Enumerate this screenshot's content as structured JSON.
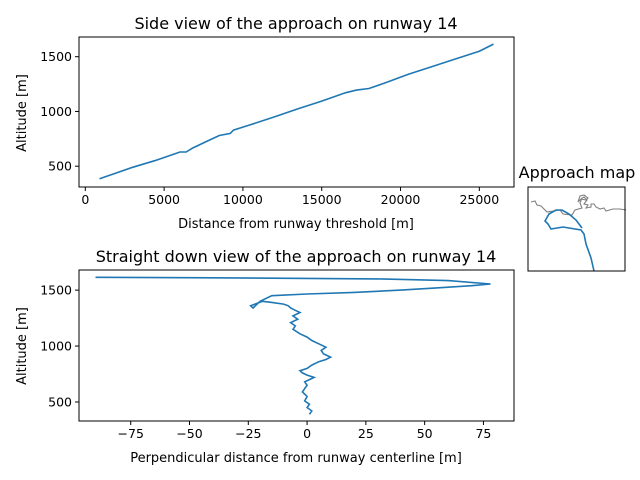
{
  "chart_data": [
    {
      "type": "line",
      "title": "Side view of the approach on runway 14",
      "xlabel": "Distance from runway threshold [m]",
      "ylabel": "Altitude [m]",
      "xlim": [
        -400,
        27200
      ],
      "ylim": [
        310,
        1680
      ],
      "xticks": [
        0,
        5000,
        10000,
        15000,
        20000,
        25000
      ],
      "xtick_labels": [
        "0",
        "5000",
        "10000",
        "15000",
        "20000",
        "25000"
      ],
      "yticks": [
        500,
        1000,
        1500
      ],
      "ytick_labels": [
        "500",
        "1000",
        "1500"
      ],
      "color": "#1f77b4",
      "series": [
        {
          "x": [
            900,
            1800,
            3000,
            4400,
            5600,
            6000,
            6400,
            6800,
            7600,
            8500,
            9200,
            9400,
            10500,
            12000,
            13500,
            15000,
            16500,
            17200,
            18000,
            19000,
            20500,
            22000,
            23500,
            25000,
            25900
          ],
          "y": [
            385,
            430,
            490,
            550,
            610,
            630,
            630,
            665,
            720,
            780,
            800,
            830,
            880,
            950,
            1025,
            1095,
            1170,
            1195,
            1210,
            1260,
            1340,
            1410,
            1480,
            1550,
            1615
          ]
        }
      ]
    },
    {
      "type": "line",
      "title": "Straight down view of the approach on runway 14",
      "xlabel": "Perpendicular distance from runway centerline [m]",
      "ylabel": "Altitude [m]",
      "xlim": [
        -97,
        88
      ],
      "ylim": [
        330,
        1680
      ],
      "xticks": [
        -75,
        -50,
        -25,
        0,
        25,
        50,
        75
      ],
      "xtick_labels": [
        "−75",
        "−50",
        "−25",
        "0",
        "25",
        "50",
        "75"
      ],
      "yticks": [
        500,
        1000,
        1500
      ],
      "ytick_labels": [
        "500",
        "1000",
        "1500"
      ],
      "color": "#1f77b4",
      "series": [
        {
          "x": [
            1,
            2,
            0,
            1,
            -1,
            0,
            -2,
            -1,
            0,
            -1,
            1,
            3,
            0,
            -2,
            -3,
            0,
            2,
            5,
            8,
            10,
            7,
            6,
            8,
            5,
            2,
            0,
            -3,
            -6,
            -5,
            -7,
            -4,
            -6,
            -3,
            -5,
            -7,
            -8,
            -10,
            -15,
            -19,
            -24,
            -23,
            -20,
            -15,
            0,
            20,
            40,
            55,
            70,
            78,
            60,
            30,
            0,
            -40,
            -90
          ],
          "y": [
            390,
            420,
            450,
            480,
            510,
            550,
            590,
            620,
            650,
            680,
            700,
            720,
            740,
            760,
            780,
            800,
            830,
            860,
            880,
            900,
            930,
            960,
            990,
            1020,
            1050,
            1080,
            1110,
            1150,
            1180,
            1210,
            1240,
            1270,
            1300,
            1320,
            1340,
            1360,
            1375,
            1390,
            1400,
            1360,
            1340,
            1400,
            1450,
            1465,
            1480,
            1500,
            1520,
            1540,
            1555,
            1585,
            1600,
            1605,
            1610,
            1615
          ]
        }
      ]
    },
    {
      "type": "map",
      "title": "Approach map",
      "coast_color": "#808080",
      "track_color": "#1f77b4"
    }
  ]
}
